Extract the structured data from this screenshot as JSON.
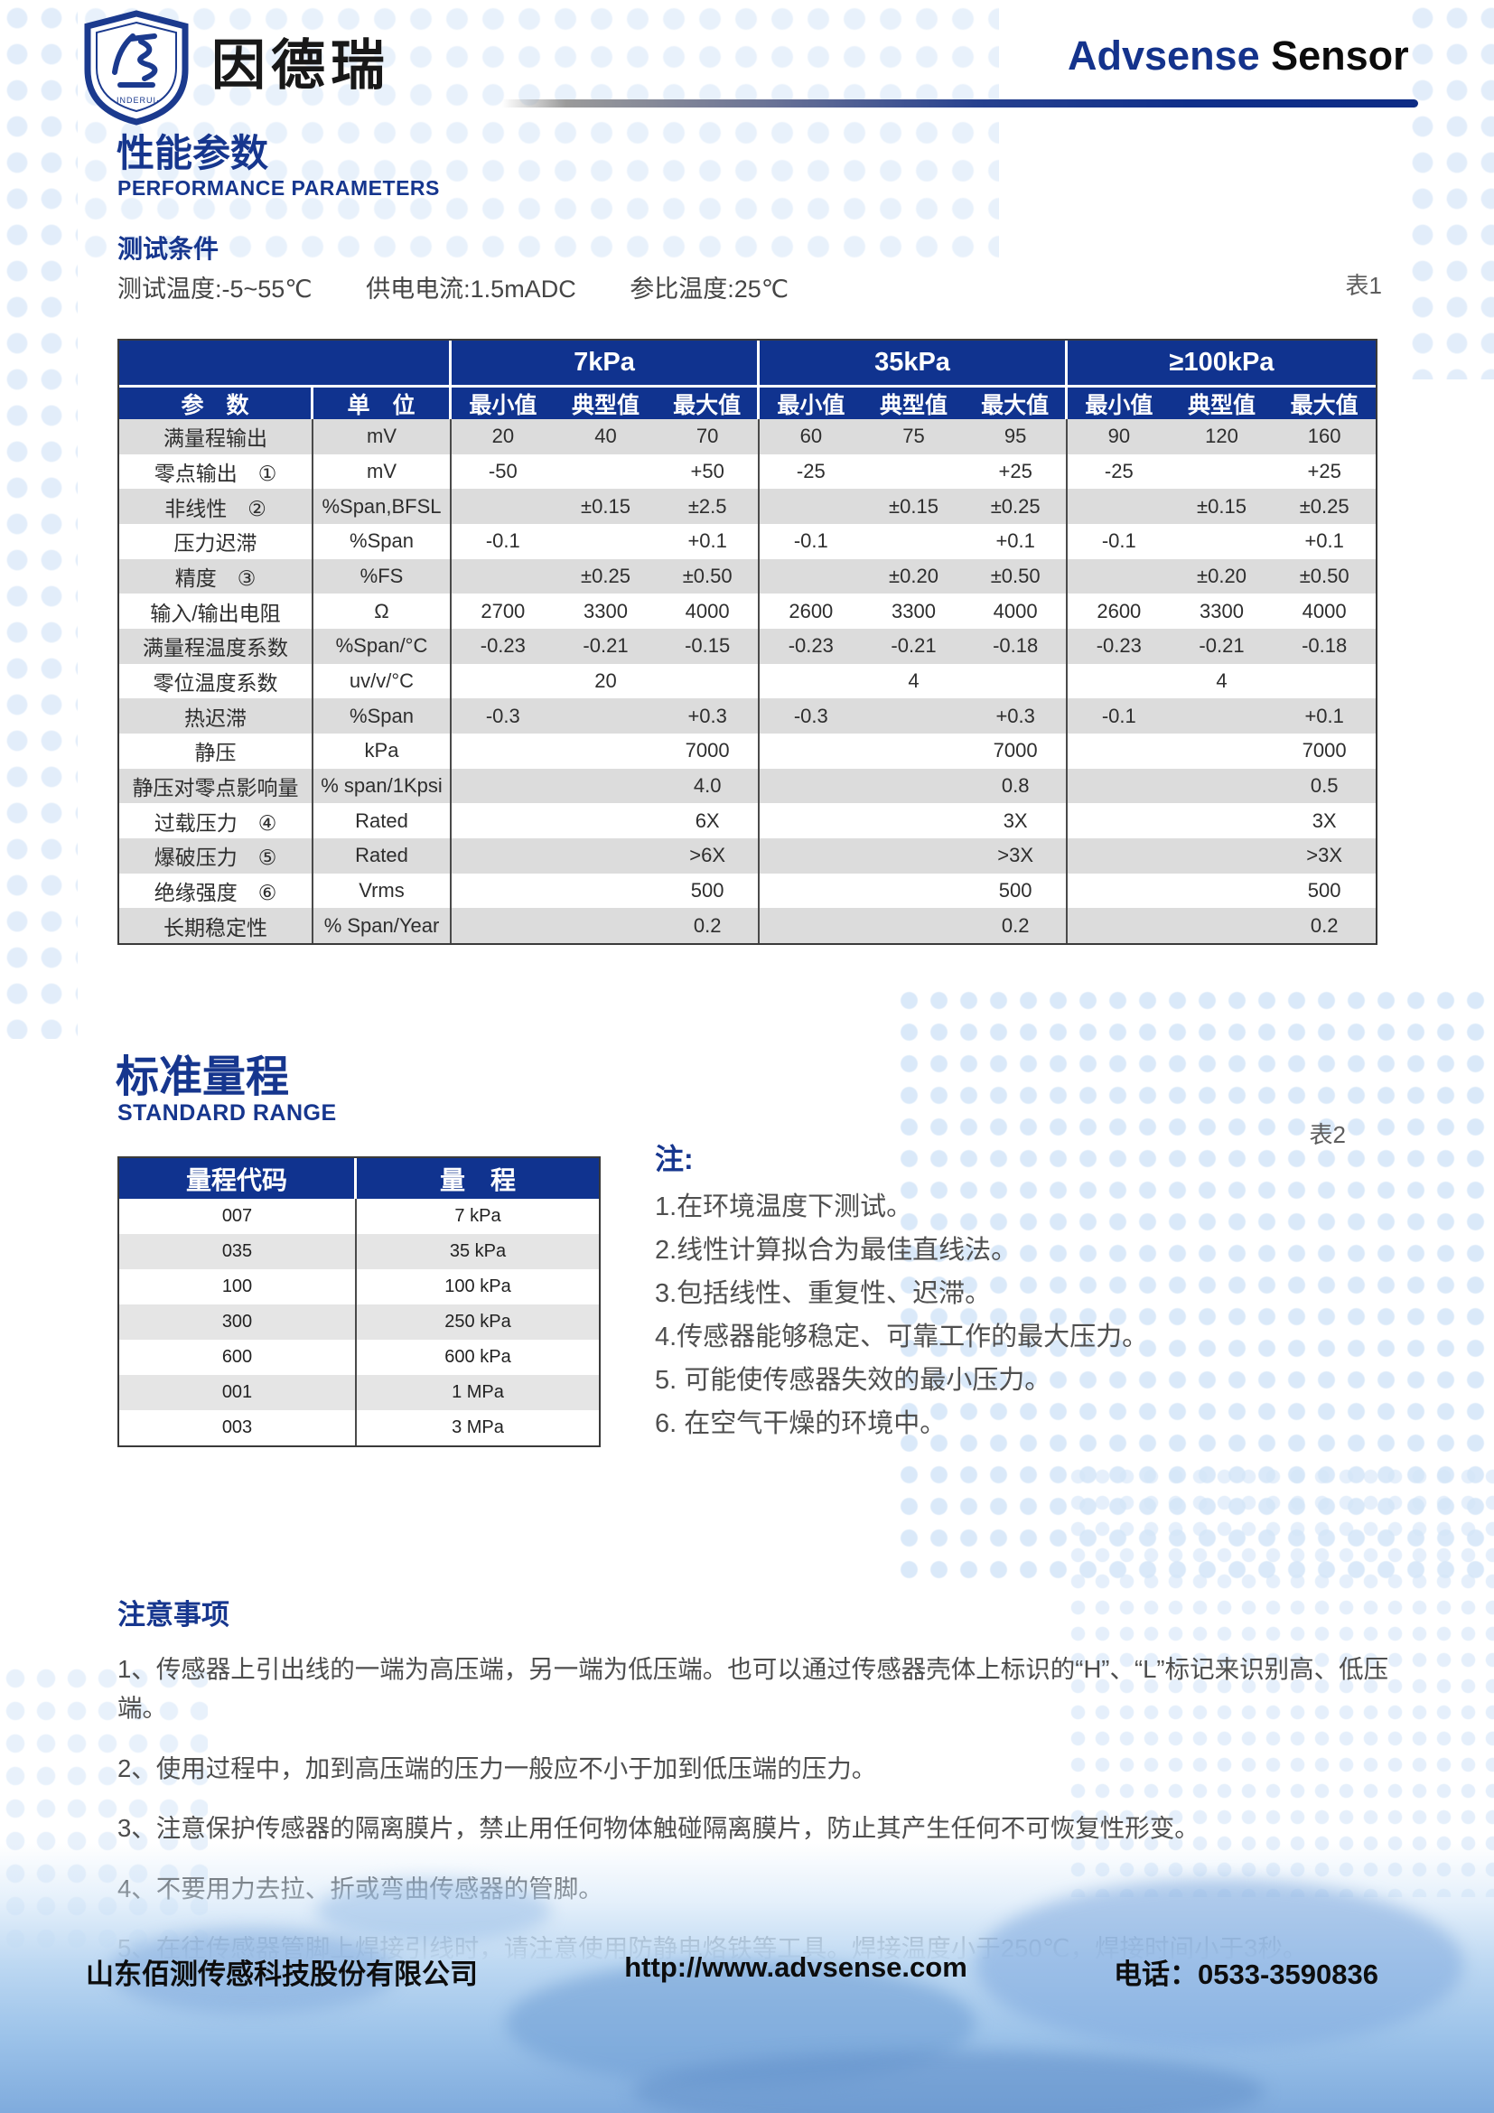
{
  "header": {
    "brand_cn": "因德瑞",
    "logo_inner_text": "·INDERUI·",
    "product_brand": "Advsense",
    "product_word": " Sensor"
  },
  "performance": {
    "title_cn": "性能参数",
    "title_en": "PERFORMANCE PARAMETERS",
    "test_conditions_heading": "测试条件",
    "conditions": [
      "测试温度:-5~55℃",
      "供电电流:1.5mADC",
      "参比温度:25℃"
    ],
    "table_label": "表1"
  },
  "table1": {
    "param_header": "参　数",
    "unit_header": "单　位",
    "groups": [
      "7kPa",
      "35kPa",
      "≥100kPa"
    ],
    "subheaders": [
      "最小值",
      "典型值",
      "最大值"
    ],
    "rows": [
      {
        "param": "满量程输出",
        "unit": "mV",
        "values": [
          "20",
          "40",
          "70",
          "60",
          "75",
          "95",
          "90",
          "120",
          "160"
        ],
        "shaded": true
      },
      {
        "param": "零点输出　①",
        "unit": "mV",
        "values": [
          "-50",
          "",
          "+50",
          "-25",
          "",
          "+25",
          "-25",
          "",
          "+25"
        ],
        "shaded": false
      },
      {
        "param": "非线性　②",
        "unit": "%Span,BFSL",
        "values": [
          "",
          "±0.15",
          "±2.5",
          "",
          "±0.15",
          "±0.25",
          "",
          "±0.15",
          "±0.25"
        ],
        "shaded": true
      },
      {
        "param": "压力迟滞",
        "unit": "%Span",
        "values": [
          "-0.1",
          "",
          "+0.1",
          "-0.1",
          "",
          "+0.1",
          "-0.1",
          "",
          "+0.1"
        ],
        "shaded": false
      },
      {
        "param": "精度　③",
        "unit": "%FS",
        "values": [
          "",
          "±0.25",
          "±0.50",
          "",
          "±0.20",
          "±0.50",
          "",
          "±0.20",
          "±0.50"
        ],
        "shaded": true
      },
      {
        "param": "输入/输出电阻",
        "unit": "Ω",
        "values": [
          "2700",
          "3300",
          "4000",
          "2600",
          "3300",
          "4000",
          "2600",
          "3300",
          "4000"
        ],
        "shaded": false
      },
      {
        "param": "满量程温度系数",
        "unit": "%Span/°C",
        "values": [
          "-0.23",
          "-0.21",
          "-0.15",
          "-0.23",
          "-0.21",
          "-0.18",
          "-0.23",
          "-0.21",
          "-0.18"
        ],
        "shaded": true
      },
      {
        "param": "零位温度系数",
        "unit": "uv/v/°C",
        "values": [
          "",
          "20",
          "",
          "",
          "4",
          "",
          "",
          "4",
          ""
        ],
        "shaded": false
      },
      {
        "param": "热迟滞",
        "unit": "%Span",
        "values": [
          "-0.3",
          "",
          "+0.3",
          "-0.3",
          "",
          "+0.3",
          "-0.1",
          "",
          "+0.1"
        ],
        "shaded": true
      },
      {
        "param": "静压",
        "unit": "kPa",
        "values": [
          "",
          "",
          "7000",
          "",
          "",
          "7000",
          "",
          "",
          "7000"
        ],
        "shaded": false
      },
      {
        "param": "静压对零点影响量",
        "unit": "% span/1Kpsi",
        "values": [
          "",
          "",
          "4.0",
          "",
          "",
          "0.8",
          "",
          "",
          "0.5"
        ],
        "shaded": true
      },
      {
        "param": "过载压力　④",
        "unit": "Rated",
        "values": [
          "",
          "",
          "6X",
          "",
          "",
          "3X",
          "",
          "",
          "3X"
        ],
        "shaded": false
      },
      {
        "param": "爆破压力　⑤",
        "unit": "Rated",
        "values": [
          "",
          "",
          ">6X",
          "",
          "",
          ">3X",
          "",
          "",
          ">3X"
        ],
        "shaded": true
      },
      {
        "param": "绝缘强度　⑥",
        "unit": "Vrms",
        "values": [
          "",
          "",
          "500",
          "",
          "",
          "500",
          "",
          "",
          "500"
        ],
        "shaded": false
      },
      {
        "param": "长期稳定性",
        "unit": "% Span/Year",
        "values": [
          "",
          "",
          "0.2",
          "",
          "",
          "0.2",
          "",
          "",
          "0.2"
        ],
        "shaded": true
      }
    ]
  },
  "standard_range": {
    "title_cn": "标准量程",
    "title_en": "STANDARD RANGE",
    "table_label": "表2",
    "col1_header": "量程代码",
    "col2_header": "量　程",
    "rows": [
      [
        "007",
        "7  kPa"
      ],
      [
        "035",
        "35  kPa"
      ],
      [
        "100",
        "100 kPa"
      ],
      [
        "300",
        "250 kPa"
      ],
      [
        "600",
        "600 kPa"
      ],
      [
        "001",
        "1  MPa"
      ],
      [
        "003",
        "3  MPa"
      ]
    ]
  },
  "notes": {
    "heading": "注:",
    "items": [
      "1.在环境温度下测试。",
      "2.线性计算拟合为最佳直线法。",
      "3.包括线性、重复性、迟滞。",
      "4.传感器能够稳定、可靠工作的最大压力。",
      "5. 可能使传感器失效的最小压力。",
      "6. 在空气干燥的环境中。"
    ]
  },
  "cautions": {
    "heading": "注意事项",
    "items": [
      "1、传感器上引出线的一端为高压端，另一端为低压端。也可以通过传感器壳体上标识的“H”、“L”标记来识别高、低压端。",
      "2、使用过程中，加到高压端的压力一般应不小于加到低压端的压力。",
      "3、注意保护传感器的隔离膜片，禁止用任何物体触碰隔离膜片，防止其产生任何不可恢复性形变。",
      "4、不要用力去拉、折或弯曲传感器的管脚。",
      "5、在往传感器管脚上焊接引线时，请注意使用防静电烙铁等工具。焊接温度小于250℃，焊接时间小于3秒。"
    ]
  },
  "footer": {
    "company": "山东佰测传感科技股份有限公司",
    "website": "http://www.advsense.com",
    "phone": "电话：0533-3590836"
  },
  "colors": {
    "primary_blue": "#10338f",
    "title_blue": "#16368e",
    "shaded_row": "#dcdcdc",
    "footer_blue": "#9ec4ea"
  }
}
